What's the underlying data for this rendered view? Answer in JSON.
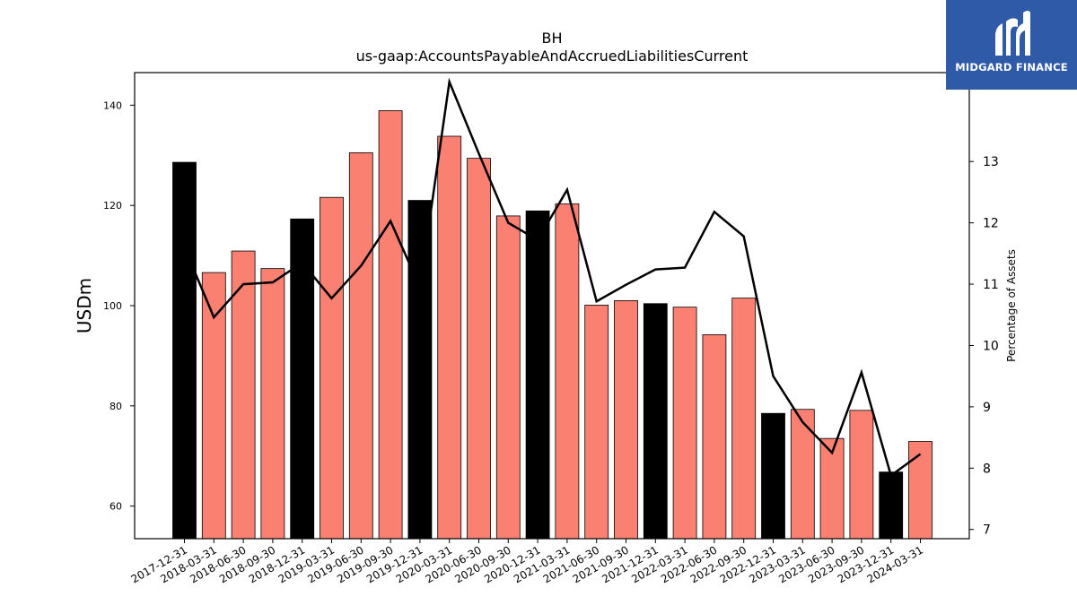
{
  "title": "BH",
  "subtitle": "us-gaap:AccountsPayableAndAccruedLiabilitiesCurrent",
  "logo": {
    "text": "MIDGARD FINANCE",
    "color": "#2f5aa8"
  },
  "colors": {
    "annual_bar": "#000000",
    "quarter_bar": "#fa8072",
    "line": "#000000"
  },
  "chart_data": {
    "type": "bar",
    "title": "BH",
    "subtitle": "us-gaap:AccountsPayableAndAccruedLiabilitiesCurrent",
    "ylabel": "USDm",
    "y2label": "Percentage of Assets",
    "ylim": [
      53.5,
      146.5
    ],
    "y2lim": [
      6.85,
      14.45
    ],
    "yticks": [
      60,
      80,
      100,
      120,
      140
    ],
    "y2ticks": [
      7,
      8,
      9,
      10,
      11,
      12,
      13
    ],
    "categories": [
      "2017-12-31",
      "2018-03-31",
      "2018-06-30",
      "2018-09-30",
      "2018-12-31",
      "2019-03-31",
      "2019-06-30",
      "2019-09-30",
      "2019-12-31",
      "2020-03-31",
      "2020-06-30",
      "2020-09-30",
      "2020-12-31",
      "2021-03-31",
      "2021-06-30",
      "2021-09-30",
      "2021-12-31",
      "2022-03-31",
      "2022-06-30",
      "2022-09-30",
      "2022-12-31",
      "2023-03-31",
      "2023-06-30",
      "2023-09-30",
      "2023-12-31",
      "2024-03-31"
    ],
    "series": [
      {
        "type": "bar",
        "values": [
          128.6,
          106.6,
          110.9,
          107.4,
          117.3,
          121.6,
          130.5,
          138.9,
          121.0,
          133.8,
          129.4,
          117.9,
          118.9,
          120.3,
          100.1,
          101.0,
          100.4,
          99.7,
          94.2,
          101.5,
          78.5,
          79.3,
          73.5,
          79.1,
          66.8,
          72.9
        ]
      },
      {
        "type": "line",
        "axis": "right",
        "values": [
          11.6,
          10.46,
          11.0,
          11.03,
          11.35,
          10.77,
          11.3,
          12.03,
          10.95,
          14.3,
          13.13,
          12.0,
          11.72,
          12.54,
          10.72,
          10.99,
          11.24,
          11.27,
          12.18,
          11.78,
          9.5,
          8.75,
          8.25,
          9.56,
          7.88,
          8.23
        ]
      }
    ],
    "annual_indices": [
      0,
      4,
      8,
      12,
      16,
      20,
      24
    ],
    "grid": false,
    "legend": "none"
  }
}
